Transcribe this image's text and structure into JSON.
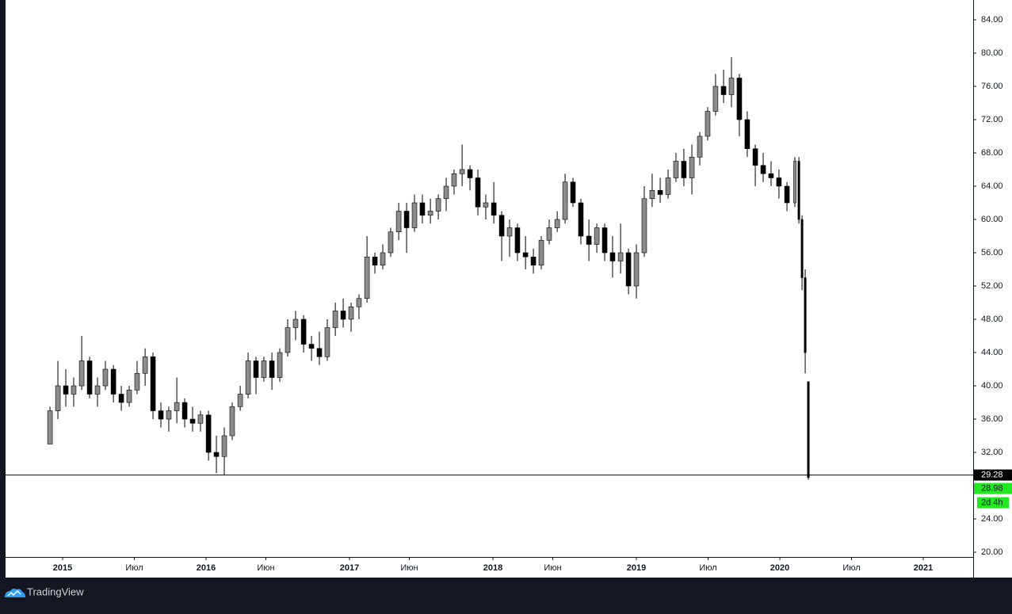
{
  "chart_data": {
    "type": "candlestick",
    "xlim": [
      2014.602,
      2021.348
    ],
    "ylim": [
      19.43,
      86.38
    ],
    "xticks": [
      {
        "value": 2015,
        "label": "2015"
      },
      {
        "value": 2015.5,
        "label": "Июл"
      },
      {
        "value": 2016,
        "label": "2016"
      },
      {
        "value": 2016.417,
        "label": "Июн"
      },
      {
        "value": 2017,
        "label": "2017"
      },
      {
        "value": 2017.417,
        "label": "Июн"
      },
      {
        "value": 2018,
        "label": "2018"
      },
      {
        "value": 2018.417,
        "label": "Июн"
      },
      {
        "value": 2019,
        "label": "2019"
      },
      {
        "value": 2019.5,
        "label": "Июл"
      },
      {
        "value": 2020,
        "label": "2020"
      },
      {
        "value": 2020.5,
        "label": "Июл"
      },
      {
        "value": 2021,
        "label": "2021"
      }
    ],
    "yticks": [
      {
        "value": 20,
        "label": "20.00"
      },
      {
        "value": 24,
        "label": "24.00"
      },
      {
        "value": 32,
        "label": "32.00"
      },
      {
        "value": 36,
        "label": "36.00"
      },
      {
        "value": 40,
        "label": "40.00"
      },
      {
        "value": 44,
        "label": "44.00"
      },
      {
        "value": 48,
        "label": "48.00"
      },
      {
        "value": 52,
        "label": "52.00"
      },
      {
        "value": 56,
        "label": "56.00"
      },
      {
        "value": 60,
        "label": "60.00"
      },
      {
        "value": 64,
        "label": "64.00"
      },
      {
        "value": 68,
        "label": "68.00"
      },
      {
        "value": 72,
        "label": "72.00"
      },
      {
        "value": 76,
        "label": "76.00"
      },
      {
        "value": 80,
        "label": "80.00"
      },
      {
        "value": 84,
        "label": "84.00"
      }
    ],
    "grid": false,
    "up_color": "#8c8c8c",
    "down_color": "#000000",
    "wick_color": "#000000",
    "x": [
      2014.912,
      2014.967,
      2015.022,
      2015.077,
      2015.133,
      2015.188,
      2015.243,
      2015.298,
      2015.354,
      2015.409,
      2015.464,
      2015.519,
      2015.575,
      2015.63,
      2015.685,
      2015.74,
      2015.796,
      2015.851,
      2015.906,
      2015.961,
      2016.017,
      2016.072,
      2016.127,
      2016.182,
      2016.238,
      2016.293,
      2016.348,
      2016.403,
      2016.459,
      2016.514,
      2016.569,
      2016.624,
      2016.68,
      2016.735,
      2016.79,
      2016.845,
      2016.901,
      2016.956,
      2017.011,
      2017.066,
      2017.122,
      2017.177,
      2017.232,
      2017.287,
      2017.343,
      2017.398,
      2017.453,
      2017.508,
      2017.564,
      2017.619,
      2017.674,
      2017.729,
      2017.785,
      2017.84,
      2017.895,
      2017.95,
      2018.006,
      2018.061,
      2018.116,
      2018.171,
      2018.227,
      2018.282,
      2018.337,
      2018.392,
      2018.448,
      2018.503,
      2018.558,
      2018.613,
      2018.669,
      2018.724,
      2018.779,
      2018.834,
      2018.89,
      2018.945,
      2019.0,
      2019.055,
      2019.11,
      2019.166,
      2019.221,
      2019.276,
      2019.331,
      2019.387,
      2019.442,
      2019.497,
      2019.552,
      2019.608,
      2019.663,
      2019.718,
      2019.773,
      2019.829,
      2019.884,
      2019.939,
      2019.994,
      2020.05,
      2020.105,
      2020.133,
      2020.155,
      2020.177,
      2020.199
    ],
    "open": [
      33,
      37,
      40,
      39,
      40,
      43,
      39,
      40,
      42,
      39,
      38,
      39.5,
      41.5,
      43.5,
      37,
      36,
      37,
      38,
      36,
      35.5,
      36.5,
      32,
      31.5,
      34,
      37.5,
      39,
      43,
      41,
      43,
      41,
      44,
      47,
      48,
      45,
      44.5,
      43.5,
      47,
      49,
      48,
      49.5,
      50.5,
      55.5,
      54.5,
      56,
      58.5,
      61,
      59,
      62,
      60.5,
      61,
      62.5,
      64,
      65.5,
      66,
      65,
      61.5,
      62,
      60.5,
      58,
      59,
      56,
      55.5,
      54.5,
      57.5,
      59,
      60,
      64.5,
      62,
      58,
      57,
      59,
      56,
      55,
      56,
      52,
      56,
      62.5,
      63.5,
      63,
      65,
      67,
      65,
      67.5,
      70,
      73,
      76,
      75,
      77,
      72,
      68.5,
      66.5,
      65.5,
      65,
      64,
      62,
      67,
      60,
      53,
      40.5
    ],
    "high": [
      37.5,
      43,
      42,
      41,
      46,
      43.5,
      41,
      43,
      42.5,
      40,
      40,
      43,
      44.5,
      44,
      38,
      37.5,
      41,
      38.5,
      37.5,
      37,
      37,
      34,
      35,
      38,
      40,
      44,
      43.5,
      43.5,
      44,
      44.5,
      48,
      49,
      48.5,
      46,
      46.5,
      48,
      50,
      50.5,
      50,
      51,
      58,
      56,
      57,
      59,
      62,
      62,
      63,
      63,
      62.5,
      63,
      65,
      66,
      69,
      66.5,
      66,
      63,
      64.5,
      61,
      60,
      59.5,
      58,
      56.5,
      58,
      60,
      61,
      65.5,
      65,
      62.5,
      60,
      59.5,
      59.5,
      58,
      59.5,
      56.5,
      57,
      64,
      65.5,
      65,
      66,
      68,
      68.5,
      69,
      70.5,
      73.5,
      77.5,
      78,
      79.5,
      77.5,
      73,
      69,
      68,
      67,
      66,
      64.5,
      67.5,
      67.5,
      60.5,
      54,
      40.5
    ],
    "low": [
      33,
      36,
      37.5,
      37.5,
      39.5,
      38.5,
      37.5,
      39.5,
      38,
      37,
      37.5,
      39,
      40,
      36,
      35,
      34.5,
      35.5,
      35,
      34.5,
      34.5,
      31,
      29.5,
      29.3,
      33.5,
      37,
      38.5,
      39,
      40.5,
      39.5,
      40.5,
      43.5,
      45.5,
      44,
      43,
      42.5,
      43,
      46,
      47,
      46.5,
      48,
      50,
      53.5,
      54,
      55.5,
      57.5,
      56,
      58.5,
      59.5,
      59.5,
      60,
      61,
      63,
      64,
      63.5,
      60.5,
      60,
      59.5,
      55,
      55.5,
      55,
      54,
      53.5,
      54,
      57,
      58.5,
      59.5,
      61.5,
      57,
      55,
      56,
      55,
      53,
      53.5,
      51,
      50.5,
      55.5,
      61.5,
      62,
      62.5,
      64.5,
      64,
      63,
      66.5,
      69.5,
      72.5,
      74,
      73.5,
      70,
      67.5,
      64,
      64.5,
      64,
      62.5,
      61,
      61.5,
      59.5,
      51.5,
      41.5,
      28.7
    ],
    "close": [
      37,
      40,
      39,
      40,
      43,
      39,
      40,
      42,
      39,
      38,
      39.5,
      41.5,
      43.5,
      37,
      36,
      37,
      38,
      36,
      35.5,
      36.5,
      32,
      31.5,
      34,
      37.5,
      39,
      43,
      41,
      43,
      41,
      44,
      47,
      48,
      45,
      44.5,
      43.5,
      47,
      49,
      48,
      49.5,
      50.5,
      55.5,
      54.5,
      56,
      58.5,
      61,
      59,
      62,
      60.5,
      61,
      62.5,
      64,
      65.5,
      66,
      65,
      61.5,
      62,
      60.5,
      58,
      59,
      56,
      55.5,
      54.5,
      57.5,
      59,
      60,
      64.5,
      62,
      58,
      57,
      59,
      56,
      55,
      56,
      52,
      56,
      62.5,
      63.5,
      63,
      65,
      67,
      65,
      67.5,
      70,
      73,
      76,
      75,
      77,
      72,
      68.5,
      66.5,
      65.5,
      65,
      64,
      62,
      67,
      60,
      53,
      44,
      28.98
    ],
    "horizontal_line": 29.28,
    "last_price": 28.98,
    "countdown": "2d 4h"
  },
  "footer": {
    "brand": "TradingView"
  }
}
